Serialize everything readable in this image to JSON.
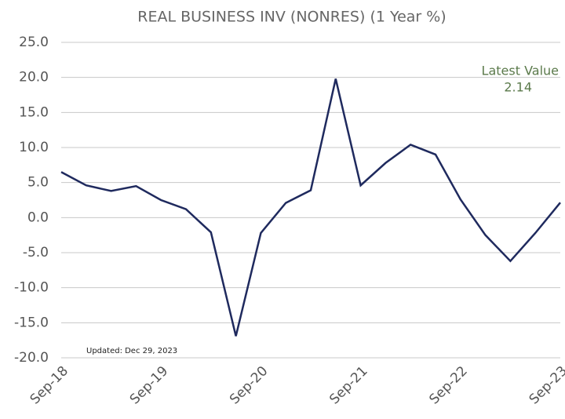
{
  "chart_data": {
    "type": "line",
    "title": "REAL BUSINESS INV (NONRES) (1 Year %)",
    "annotations": [
      "Latest Value",
      "2.14",
      "Updated: Dec 29, 2023"
    ],
    "categories": [
      "Sep-18",
      null,
      null,
      null,
      "Sep-19",
      null,
      null,
      null,
      "Sep-20",
      null,
      null,
      null,
      "Sep-21",
      null,
      null,
      null,
      "Sep-22",
      null,
      null,
      null,
      "Sep-23"
    ],
    "series": [
      {
        "name": "REAL BUSINESS INV (NONRES)",
        "color": "#1f2a5e",
        "values": [
          6.5,
          4.6,
          3.8,
          4.5,
          2.5,
          1.2,
          -2.1,
          -16.9,
          -2.2,
          2.1,
          3.9,
          19.8,
          4.6,
          7.8,
          10.4,
          9.0,
          2.6,
          -2.5,
          -6.2,
          -2.2,
          2.14
        ]
      }
    ],
    "ylim": [
      -20,
      25
    ],
    "yticks": [
      {
        "value": -20,
        "label": "-20.0"
      },
      {
        "value": -15,
        "label": "-15.0"
      },
      {
        "value": -10,
        "label": "-10.0"
      },
      {
        "value": -5,
        "label": "-5.0"
      },
      {
        "value": 0,
        "label": "0.0"
      },
      {
        "value": 5,
        "label": "5.0"
      },
      {
        "value": 10,
        "label": "10.0"
      },
      {
        "value": 15,
        "label": "15.0"
      },
      {
        "value": 20,
        "label": "20.0"
      },
      {
        "value": 25,
        "label": "25.0"
      }
    ],
    "grid": true
  }
}
